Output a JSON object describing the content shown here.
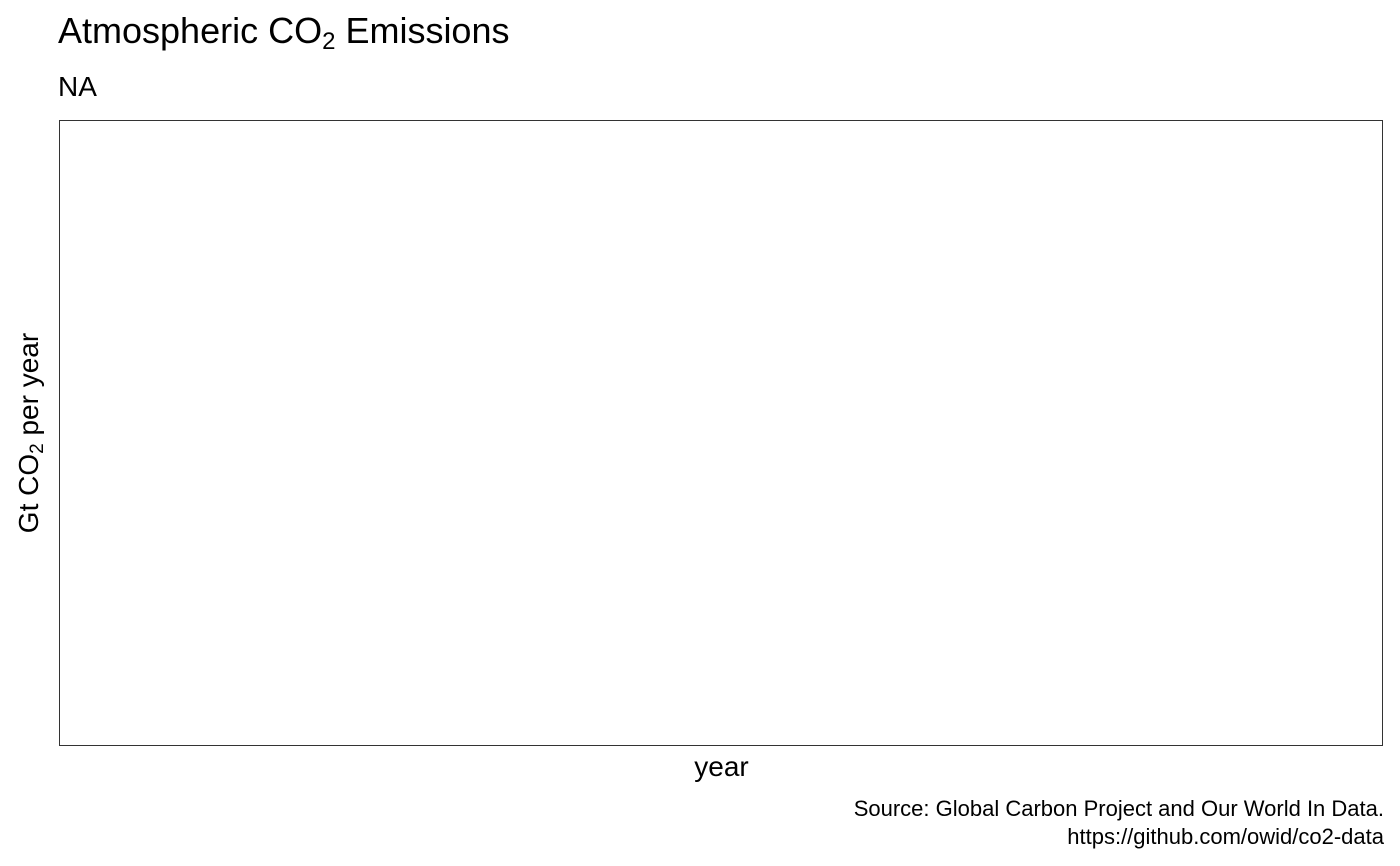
{
  "chart_data": {
    "type": "line",
    "title_parts": {
      "main": "Atmospheric CO",
      "sub": "2",
      "rest": " Emissions"
    },
    "subtitle": "NA",
    "xlabel": "year",
    "ylabel_parts": {
      "main": "Gt CO",
      "sub": "2",
      "rest": " per year"
    },
    "caption": {
      "line1": "Source: Global Carbon Project and Our World In Data.",
      "line2": "https://github.com/owid/co2-data"
    },
    "series": [],
    "grid": false,
    "colors": {
      "panel_border": "#333333",
      "background": "#ffffff",
      "text": "#000000"
    }
  }
}
